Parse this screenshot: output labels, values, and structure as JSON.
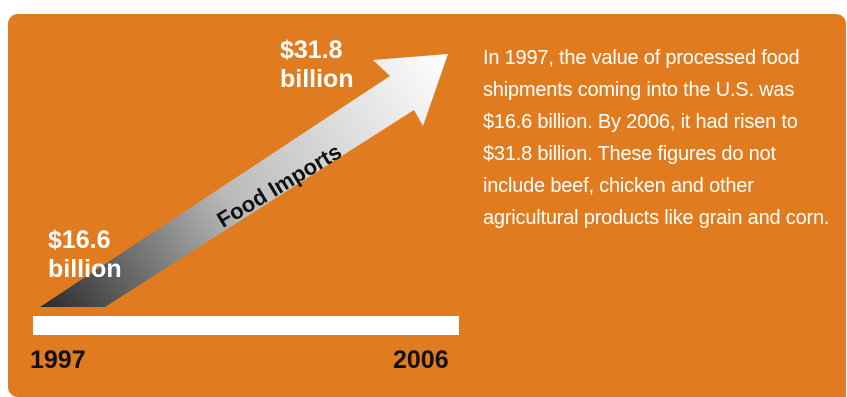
{
  "chart_data": {
    "type": "line",
    "series": [
      {
        "name": "Food Imports",
        "x": [
          "1997",
          "2006"
        ],
        "values": [
          16.6,
          31.8
        ]
      }
    ],
    "start": {
      "year": "1997",
      "label_line1": "$16.6",
      "label_line2": "billion"
    },
    "end": {
      "year": "2006",
      "label_line1": "$31.8",
      "label_line2": "billion"
    },
    "arrow_label": "Food Imports",
    "colors": {
      "background": "#e07b1f",
      "text": "#ffffff",
      "year_text": "#111111",
      "arrow_start": "#2a2a2a",
      "arrow_end": "#ffffff"
    }
  },
  "description": "In 1997, the value of processed food shipments coming into the U.S. was $16.6 billion. By 2006, it had risen to $31.8 billion. These figures do not include beef, chicken and other agricultural products like grain and corn."
}
